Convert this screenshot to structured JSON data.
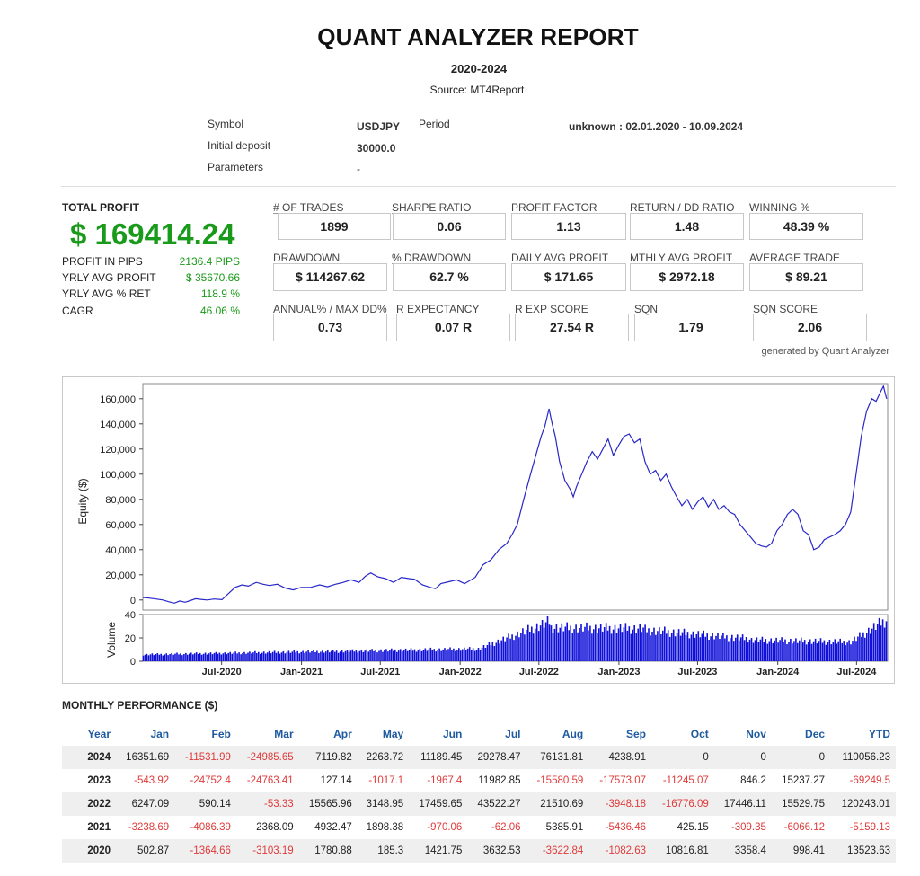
{
  "report": {
    "title": "QUANT ANALYZER REPORT",
    "period": "2020-2024",
    "source": "Source: MT4Report"
  },
  "info": {
    "symbol_label": "Symbol",
    "symbol_value": "USDJPY",
    "period_label": "Period",
    "period_value": "unknown : 02.01.2020 - 10.09.2024",
    "deposit_label": "Initial deposit",
    "deposit_value": "30000.0",
    "parameters_label": "Parameters",
    "parameters_value": "-"
  },
  "total_profit": {
    "label": "TOTAL PROFIT",
    "value": "$ 169414.24",
    "rows": [
      {
        "label": "PROFIT IN PIPS",
        "value": "2136.4 PIPS"
      },
      {
        "label": "YRLY AVG PROFIT",
        "value": "$ 35670.66"
      },
      {
        "label": "YRLY AVG % RET",
        "value": "118.9 %"
      },
      {
        "label": "CAGR",
        "value": "46.06 %"
      }
    ]
  },
  "metrics": [
    {
      "label": "# OF TRADES",
      "value": "1899"
    },
    {
      "label": "SHARPE RATIO",
      "value": "0.06"
    },
    {
      "label": "PROFIT FACTOR",
      "value": "1.13"
    },
    {
      "label": "RETURN / DD RATIO",
      "value": "1.48"
    },
    {
      "label": "WINNING %",
      "value": "48.39 %"
    },
    {
      "label": "DRAWDOWN",
      "value": "$ 114267.62"
    },
    {
      "label": "% DRAWDOWN",
      "value": "62.7 %"
    },
    {
      "label": "DAILY AVG PROFIT",
      "value": "$ 171.65"
    },
    {
      "label": "MTHLY AVG PROFIT",
      "value": "$ 2972.18"
    },
    {
      "label": "AVERAGE TRADE",
      "value": "$ 89.21"
    },
    {
      "label": "ANNUAL% / MAX DD%",
      "value": "0.73"
    },
    {
      "label": "R EXPECTANCY",
      "value": "0.07 R"
    },
    {
      "label": "R EXP SCORE",
      "value": "27.54 R"
    },
    {
      "label": "SQN",
      "value": "1.79"
    },
    {
      "label": "SQN SCORE",
      "value": "2.06"
    }
  ],
  "generated_by": "generated by Quant Analyzer",
  "chart_data": {
    "type": "line",
    "ylabel": "Equity ($)",
    "ylim": [
      -8000,
      172000
    ],
    "y_ticks": [
      "0",
      "20,000",
      "40,000",
      "60,000",
      "80,000",
      "100,000",
      "120,000",
      "140,000",
      "160,000"
    ],
    "x_ticks": [
      "Jul-2020",
      "Jan-2021",
      "Jul-2021",
      "Jan-2022",
      "Jul-2022",
      "Jan-2023",
      "Jul-2023",
      "Jan-2024",
      "Jul-2024"
    ],
    "x_range": [
      "2020-01-02",
      "2024-09-10"
    ],
    "line_color": "#2828c8",
    "series": [
      {
        "values": [
          [
            0.0,
            2000
          ],
          [
            0.012,
            1500
          ],
          [
            0.025,
            800
          ],
          [
            0.038,
            0
          ],
          [
            0.05,
            -1500
          ],
          [
            0.06,
            -2500
          ],
          [
            0.07,
            -800
          ],
          [
            0.08,
            -1800
          ],
          [
            0.09,
            -500
          ],
          [
            0.1,
            1000
          ],
          [
            0.11,
            500
          ],
          [
            0.122,
            0
          ],
          [
            0.135,
            800
          ],
          [
            0.15,
            300
          ],
          [
            0.162,
            5000
          ],
          [
            0.175,
            10000
          ],
          [
            0.188,
            12000
          ],
          [
            0.2,
            11000
          ],
          [
            0.215,
            14000
          ],
          [
            0.228,
            12500
          ],
          [
            0.24,
            11500
          ],
          [
            0.255,
            12500
          ],
          [
            0.27,
            9500
          ],
          [
            0.285,
            8000
          ],
          [
            0.3,
            10000
          ],
          [
            0.318,
            10000
          ],
          [
            0.335,
            12000
          ],
          [
            0.35,
            10500
          ],
          [
            0.365,
            12500
          ],
          [
            0.38,
            14000
          ],
          [
            0.395,
            16000
          ],
          [
            0.41,
            14000
          ],
          [
            0.422,
            19000
          ],
          [
            0.432,
            21500
          ],
          [
            0.445,
            18500
          ],
          [
            0.46,
            17000
          ],
          [
            0.475,
            14000
          ],
          [
            0.49,
            18000
          ],
          [
            0.505,
            17000
          ],
          [
            0.515,
            16500
          ],
          [
            0.53,
            12000
          ],
          [
            0.545,
            10000
          ],
          [
            0.555,
            9000
          ],
          [
            0.565,
            13000
          ],
          [
            0.58,
            14500
          ],
          [
            0.595,
            16000
          ],
          [
            0.61,
            13000
          ],
          [
            0.63,
            18000
          ],
          [
            0.645,
            28000
          ],
          [
            0.66,
            32000
          ],
          [
            0.675,
            40000
          ],
          [
            0.69,
            45000
          ],
          [
            0.7,
            52000
          ],
          [
            0.71,
            60000
          ],
          [
            0.722,
            80000
          ],
          [
            0.735,
            100000
          ],
          [
            0.745,
            115000
          ],
          [
            0.755,
            130000
          ],
          [
            0.762,
            138000
          ],
          [
            0.77,
            152000
          ],
          [
            0.776,
            140000
          ],
          [
            0.782,
            130000
          ],
          [
            0.79,
            110000
          ],
          [
            0.8,
            95000
          ],
          [
            0.81,
            88000
          ],
          [
            0.816,
            82000
          ],
          [
            0.822,
            90000
          ],
          [
            0.832,
            100000
          ],
          [
            0.842,
            110000
          ],
          [
            0.852,
            118000
          ],
          [
            0.862,
            112000
          ],
          [
            0.872,
            120000
          ],
          [
            0.882,
            128000
          ],
          [
            0.892,
            115000
          ],
          [
            0.902,
            123000
          ],
          [
            0.912,
            130000
          ],
          [
            0.922,
            132000
          ],
          [
            0.932,
            125000
          ],
          [
            0.942,
            128000
          ],
          [
            0.952,
            110000
          ],
          [
            0.962,
            100000
          ],
          [
            0.972,
            103000
          ],
          [
            0.982,
            95000
          ],
          [
            0.992,
            100000
          ],
          [
            1.002,
            90000
          ],
          [
            1.012,
            82000
          ],
          [
            1.022,
            75000
          ],
          [
            1.032,
            80000
          ],
          [
            1.042,
            72000
          ],
          [
            1.052,
            78000
          ],
          [
            1.062,
            82000
          ],
          [
            1.072,
            74000
          ],
          [
            1.082,
            80000
          ],
          [
            1.092,
            72000
          ],
          [
            1.102,
            75000
          ],
          [
            1.112,
            70000
          ],
          [
            1.122,
            68000
          ],
          [
            1.132,
            60000
          ],
          [
            1.142,
            55000
          ],
          [
            1.152,
            50000
          ],
          [
            1.162,
            45000
          ],
          [
            1.172,
            43000
          ],
          [
            1.182,
            42000
          ],
          [
            1.192,
            45000
          ],
          [
            1.202,
            55000
          ],
          [
            1.212,
            60000
          ],
          [
            1.222,
            68000
          ],
          [
            1.232,
            72000
          ],
          [
            1.242,
            68000
          ],
          [
            1.252,
            55000
          ],
          [
            1.262,
            52000
          ],
          [
            1.272,
            40000
          ],
          [
            1.282,
            42000
          ],
          [
            1.292,
            48000
          ],
          [
            1.302,
            50000
          ],
          [
            1.312,
            52000
          ],
          [
            1.322,
            55000
          ],
          [
            1.332,
            60000
          ],
          [
            1.342,
            70000
          ],
          [
            1.352,
            100000
          ],
          [
            1.362,
            130000
          ],
          [
            1.372,
            150000
          ],
          [
            1.382,
            160000
          ],
          [
            1.39,
            158000
          ],
          [
            1.398,
            165000
          ],
          [
            1.404,
            170000
          ],
          [
            1.41,
            160000
          ]
        ]
      }
    ]
  },
  "volume_chart": {
    "type": "bar",
    "ylabel": "Volume",
    "ylim": [
      0,
      40
    ],
    "y_ticks": [
      "0",
      "20",
      "40"
    ],
    "bar_color": "#1010d8"
  },
  "monthly": {
    "title": "MONTHLY PERFORMANCE ($)",
    "headers": [
      "Year",
      "Jan",
      "Feb",
      "Mar",
      "Apr",
      "May",
      "Jun",
      "Jul",
      "Aug",
      "Sep",
      "Oct",
      "Nov",
      "Dec",
      "YTD"
    ],
    "rows": [
      [
        "2024",
        "16351.69",
        "-11531.99",
        "-24985.65",
        "7119.82",
        "2263.72",
        "11189.45",
        "29278.47",
        "76131.81",
        "4238.91",
        "0",
        "0",
        "0",
        "110056.23"
      ],
      [
        "2023",
        "-543.92",
        "-24752.4",
        "-24763.41",
        "127.14",
        "-1017.1",
        "-1967.4",
        "11982.85",
        "-15580.59",
        "-17573.07",
        "-11245.07",
        "846.2",
        "15237.27",
        "-69249.5"
      ],
      [
        "2022",
        "6247.09",
        "590.14",
        "-53.33",
        "15565.96",
        "3148.95",
        "17459.65",
        "43522.27",
        "21510.69",
        "-3948.18",
        "-16776.09",
        "17446.11",
        "15529.75",
        "120243.01"
      ],
      [
        "2021",
        "-3238.69",
        "-4086.39",
        "2368.09",
        "4932.47",
        "1898.38",
        "-970.06",
        "-62.06",
        "5385.91",
        "-5436.46",
        "425.15",
        "-309.35",
        "-6066.12",
        "-5159.13"
      ],
      [
        "2020",
        "502.87",
        "-1364.66",
        "-3103.19",
        "1780.88",
        "185.3",
        "1421.75",
        "3632.53",
        "-3622.84",
        "-1082.63",
        "10816.81",
        "3358.4",
        "998.41",
        "13523.63"
      ]
    ]
  }
}
